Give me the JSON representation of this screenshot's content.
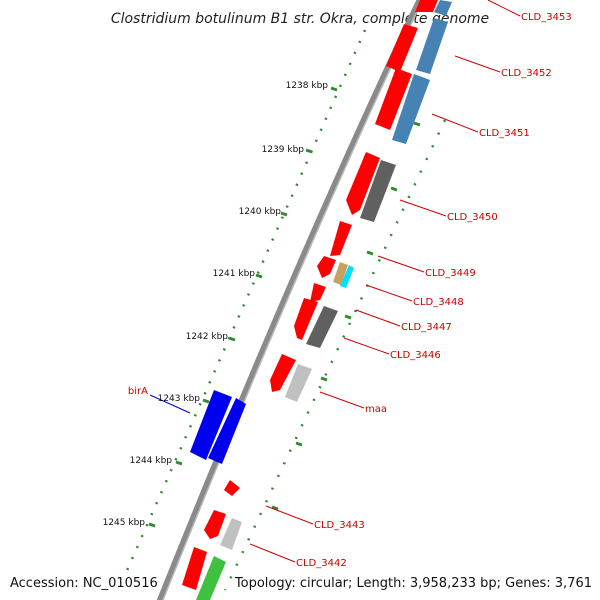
{
  "title": "Clostridium botulinum B1 str. Okra, complete genome",
  "footer": {
    "accession": "Accession: NC_010516",
    "summary": "Topology: circular; Length: 3,958,233 bp; Genes: 3,761"
  },
  "colors": {
    "backbone": "#8a8a8a",
    "tick": "#2e8b2e",
    "gene_red": "#ff0000",
    "gene_blue_steel": "#4682b4",
    "gene_gray": "#606060",
    "gene_light_gray": "#c0c0c0",
    "gene_tan": "#c8a060",
    "gene_cyan": "#00e0ff",
    "gene_blue": "#0000ee",
    "gene_green": "#40c040",
    "label_red": "#cc0000",
    "label_blue": "#0000cc"
  },
  "scale_labels": [
    "1238 kbp",
    "1239 kbp",
    "1240 kbp",
    "1241 kbp",
    "1242 kbp",
    "1243 kbp",
    "1244 kbp",
    "1245 kbp"
  ],
  "gene_labels": [
    {
      "text": "CLD_3453",
      "color": "red"
    },
    {
      "text": "CLD_3452",
      "color": "red"
    },
    {
      "text": "CLD_3451",
      "color": "red"
    },
    {
      "text": "CLD_3450",
      "color": "red"
    },
    {
      "text": "CLD_3449",
      "color": "red"
    },
    {
      "text": "CLD_3448",
      "color": "red"
    },
    {
      "text": "CLD_3447",
      "color": "red"
    },
    {
      "text": "CLD_3446",
      "color": "red"
    },
    {
      "text": "maa",
      "color": "red"
    },
    {
      "text": "CLD_3443",
      "color": "red"
    },
    {
      "text": "CLD_3442",
      "color": "red"
    },
    {
      "text": "birA",
      "color": "blue"
    }
  ]
}
